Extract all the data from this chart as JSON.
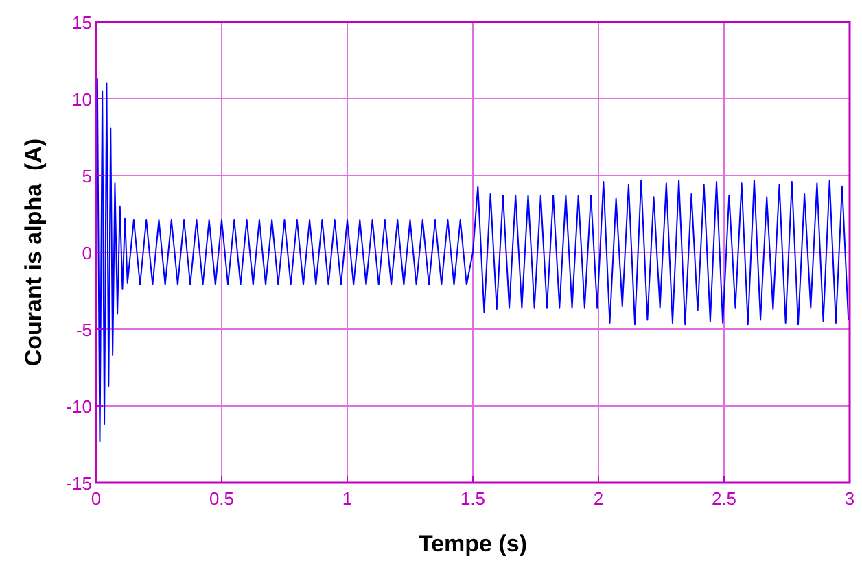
{
  "chart_data": {
    "type": "line",
    "xlabel": "Tempe (s)",
    "ylabel": "Courant is alpha  (A)",
    "xlim": [
      0,
      3
    ],
    "ylim": [
      -15,
      15
    ],
    "xticks": [
      0,
      0.5,
      1,
      1.5,
      2,
      2.5,
      3
    ],
    "yticks": [
      -15,
      -10,
      -5,
      0,
      5,
      10,
      15
    ],
    "grid": true,
    "marker": "none",
    "line_style": "solid",
    "series": [
      {
        "color": "#0000ff",
        "x": [
          0,
          0.005,
          0.015,
          0.025,
          0.033,
          0.042,
          0.05,
          0.058,
          0.066,
          0.075,
          0.085,
          0.095,
          0.105,
          0.115,
          0.125,
          0.15,
          0.175,
          0.2,
          0.225,
          0.25,
          0.275,
          0.3,
          0.325,
          0.35,
          0.375,
          0.4,
          0.425,
          0.45,
          0.475,
          0.5,
          0.525,
          0.55,
          0.575,
          0.6,
          0.625,
          0.65,
          0.675,
          0.7,
          0.725,
          0.75,
          0.775,
          0.8,
          0.825,
          0.85,
          0.875,
          0.9,
          0.925,
          0.95,
          0.975,
          1,
          1.025,
          1.05,
          1.075,
          1.1,
          1.125,
          1.15,
          1.175,
          1.2,
          1.225,
          1.25,
          1.275,
          1.3,
          1.325,
          1.35,
          1.375,
          1.4,
          1.425,
          1.45,
          1.475,
          1.5,
          1.52,
          1.545,
          1.57,
          1.595,
          1.62,
          1.645,
          1.67,
          1.695,
          1.72,
          1.745,
          1.77,
          1.795,
          1.82,
          1.845,
          1.87,
          1.895,
          1.92,
          1.945,
          1.97,
          1.995,
          2.02,
          2.045,
          2.07,
          2.095,
          2.12,
          2.145,
          2.17,
          2.195,
          2.22,
          2.245,
          2.27,
          2.295,
          2.32,
          2.345,
          2.37,
          2.395,
          2.42,
          2.445,
          2.47,
          2.495,
          2.52,
          2.545,
          2.57,
          2.595,
          2.62,
          2.645,
          2.67,
          2.695,
          2.72,
          2.745,
          2.77,
          2.795,
          2.82,
          2.845,
          2.87,
          2.895,
          2.92,
          2.945,
          2.97,
          2.995
        ],
        "values": [
          0,
          11.3,
          -12.3,
          10.5,
          -11.2,
          11,
          -8.7,
          8.1,
          -6.7,
          4.5,
          -4,
          3,
          -2.4,
          2.2,
          -2,
          2.1,
          -2.1,
          2.1,
          -2.1,
          2.1,
          -2.1,
          2.1,
          -2.1,
          2.1,
          -2.1,
          2.1,
          -2.1,
          2.1,
          -2.1,
          2.1,
          -2.1,
          2.1,
          -2.1,
          2.1,
          -2.1,
          2.1,
          -2.1,
          2.1,
          -2.1,
          2.1,
          -2.1,
          2.1,
          -2.1,
          2.1,
          -2.1,
          2.1,
          -2.1,
          2.1,
          -2.1,
          2.1,
          -2.1,
          2.1,
          -2.1,
          2.1,
          -2.1,
          2.1,
          -2.1,
          2.1,
          -2.1,
          2.1,
          -2.1,
          2.1,
          -2.1,
          2.1,
          -2.1,
          2.1,
          -2.1,
          2.1,
          -2.1,
          0,
          4.3,
          -3.9,
          3.8,
          -3.7,
          3.7,
          -3.6,
          3.7,
          -3.6,
          3.7,
          -3.6,
          3.7,
          -3.6,
          3.7,
          -3.6,
          3.7,
          -3.6,
          3.7,
          -3.6,
          3.7,
          -3.6,
          4.6,
          -4.6,
          3.5,
          -3.5,
          4.4,
          -4.7,
          4.7,
          -4.4,
          3.6,
          -3.6,
          4.5,
          -4.6,
          4.7,
          -4.7,
          3.8,
          -3.8,
          4.4,
          -4.5,
          4.6,
          -4.6,
          3.7,
          -3.6,
          4.5,
          -4.7,
          4.7,
          -4.4,
          3.6,
          -3.7,
          4.4,
          -4.6,
          4.6,
          -4.7,
          3.8,
          -3.6,
          4.5,
          -4.5,
          4.7,
          -4.6,
          4.3,
          -4.4
        ]
      }
    ]
  }
}
